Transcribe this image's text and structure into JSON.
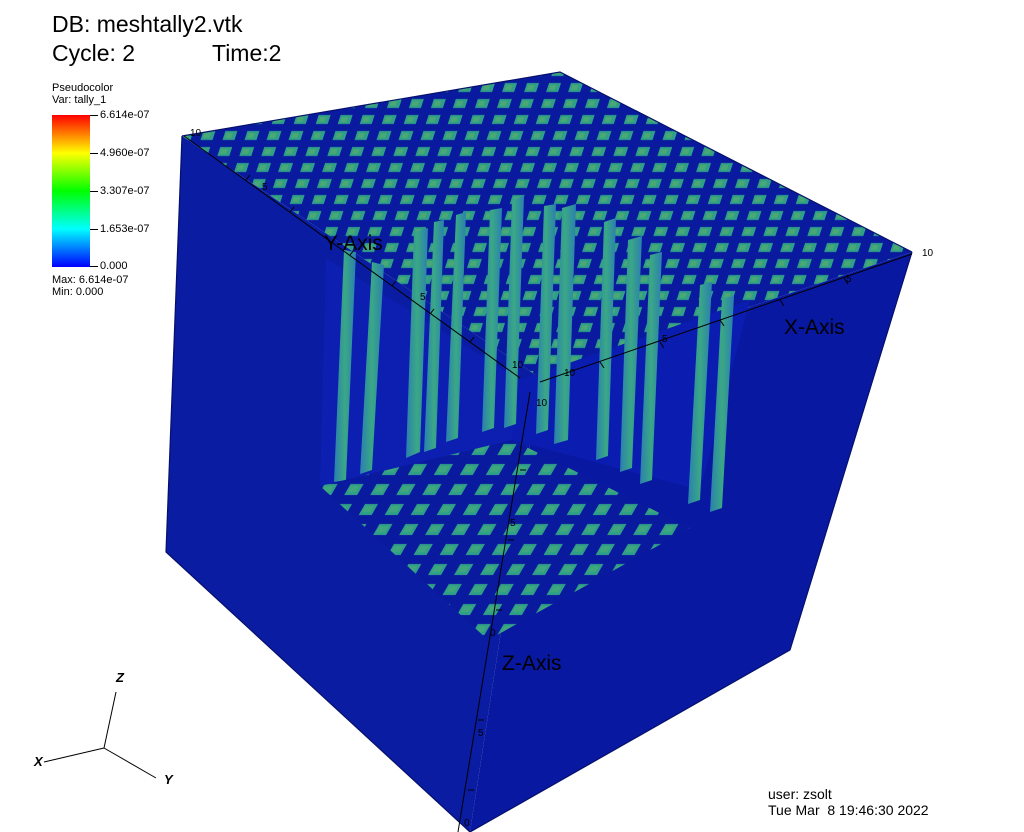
{
  "header": {
    "db_label": "DB: meshtally2.vtk",
    "cycle_label": "Cycle: 2",
    "time_label": "Time:2"
  },
  "legend": {
    "plot_type": "Pseudocolor",
    "var_label": "Var: tally_1",
    "ticks": [
      "6.614e-07",
      "4.960e-07",
      "3.307e-07",
      "1.653e-07",
      "0.000"
    ],
    "max_label": "Max: 6.614e-07",
    "min_label": "Min: 0.000",
    "colors": [
      "#ff0000",
      "#ffff00",
      "#00ff00",
      "#00ffff",
      "#0000ff"
    ]
  },
  "axes": {
    "x_title": "X-Axis",
    "y_title": "Y-Axis",
    "z_title": "Z-Axis",
    "ticks": {
      "y_far_0": "10",
      "y_far_1": "5",
      "y_near_mid": "5",
      "y_near_end": "10",
      "x_far_end": "10",
      "x_far_mid": "5",
      "x_near_mid": "5",
      "x_near_end": "10",
      "z_top": "10",
      "z_mid": "5",
      "z_end": "0",
      "z_low": "5",
      "z_bottom": "0"
    }
  },
  "triad": {
    "x": "X",
    "y": "Y",
    "z": "Z"
  },
  "footer": {
    "user_label": "user: zsolt",
    "date_label": "Tue Mar  8 19:46:30 2022"
  },
  "colors": {
    "cube_blue": "#0a1a9e",
    "cube_side": "#07148f",
    "cell_green": "#2f9f88",
    "cell_teal": "#2a7fb0"
  }
}
